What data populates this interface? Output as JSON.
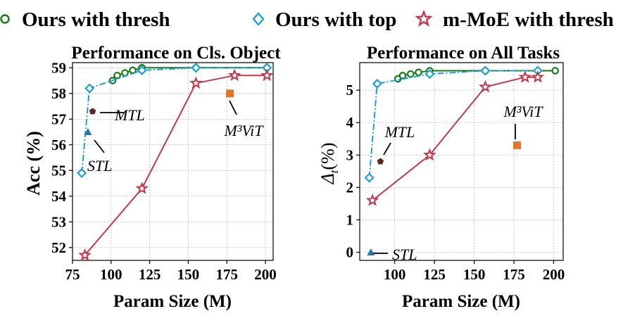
{
  "legend": [
    {
      "label": "Ours with thresh",
      "color": "#1a7a1a",
      "marker": "circle",
      "line": "solid"
    },
    {
      "label": "Ours with top",
      "color": "#1ea0d6",
      "marker": "diamond",
      "line": "dashdot"
    },
    {
      "label": "m-MoE with thresh",
      "color": "#c0394a",
      "marker": "star",
      "line": "solid"
    }
  ],
  "chart_data": [
    {
      "type": "line",
      "title": "Performance on Cls. Object",
      "xlabel": "Param Size (M)",
      "ylabel": "Acc (%)",
      "xlim": [
        75,
        205
      ],
      "ylim": [
        51.5,
        59.2
      ],
      "xticks": [
        75,
        100,
        125,
        150,
        175,
        200
      ],
      "yticks": [
        52,
        53,
        54,
        55,
        56,
        57,
        58,
        59
      ],
      "grid": true,
      "series": [
        {
          "name": "Ours with thresh",
          "color": "#1a7a1a",
          "marker": "circle",
          "x": [
            101,
            104,
            109,
            114,
            120,
            155,
            201
          ],
          "y": [
            58.5,
            58.7,
            58.8,
            58.9,
            59.0,
            59.0,
            59.0
          ]
        },
        {
          "name": "Ours with top",
          "color": "#1ea0d6",
          "marker": "diamond",
          "x": [
            81,
            86,
            120,
            155,
            201
          ],
          "y": [
            54.9,
            58.2,
            58.9,
            59.0,
            59.0
          ]
        },
        {
          "name": "m-MoE with thresh",
          "color": "#c0394a",
          "marker": "star",
          "x": [
            83,
            120,
            155,
            180,
            201
          ],
          "y": [
            51.7,
            54.3,
            58.4,
            58.7,
            58.7
          ]
        }
      ],
      "points": [
        {
          "label": "MTL",
          "x": 88,
          "y": 57.3,
          "color": "#5a2a1e",
          "marker": "pentagon"
        },
        {
          "label": "STL",
          "x": 85,
          "y": 56.5,
          "color": "#1f77b4",
          "marker": "triangle"
        },
        {
          "label": "M³ViT",
          "x": 177,
          "y": 58.0,
          "color": "#e8742c",
          "marker": "square"
        }
      ]
    },
    {
      "type": "line",
      "title": "Performance on All Tasks",
      "xlabel": "Param Size (M)",
      "ylabel": "Δt(%)",
      "xlim": [
        78,
        206
      ],
      "ylim": [
        -0.25,
        5.85
      ],
      "xticks": [
        100,
        125,
        150,
        175,
        200
      ],
      "yticks": [
        0,
        1,
        2,
        3,
        4,
        5
      ],
      "grid": true,
      "series": [
        {
          "name": "Ours with thresh",
          "color": "#1a7a1a",
          "marker": "circle",
          "x": [
            102,
            105,
            110,
            115,
            122,
            157,
            201
          ],
          "y": [
            5.35,
            5.45,
            5.5,
            5.55,
            5.6,
            5.6,
            5.6
          ]
        },
        {
          "name": "Ours with top",
          "color": "#1ea0d6",
          "marker": "diamond",
          "x": [
            84,
            89,
            122,
            157,
            190
          ],
          "y": [
            2.3,
            5.2,
            5.5,
            5.6,
            5.6
          ]
        },
        {
          "name": "m-MoE with thresh",
          "color": "#c0394a",
          "marker": "star",
          "x": [
            86,
            122,
            157,
            182,
            190
          ],
          "y": [
            1.6,
            3.0,
            5.1,
            5.4,
            5.4
          ]
        }
      ],
      "points": [
        {
          "label": "MTL",
          "x": 91,
          "y": 2.8,
          "color": "#5a2a1e",
          "marker": "pentagon"
        },
        {
          "label": "STL",
          "x": 85,
          "y": 0.0,
          "color": "#1f77b4",
          "marker": "triangle"
        },
        {
          "label": "M³ViT",
          "x": 177,
          "y": 3.3,
          "color": "#e8742c",
          "marker": "square"
        }
      ]
    }
  ]
}
